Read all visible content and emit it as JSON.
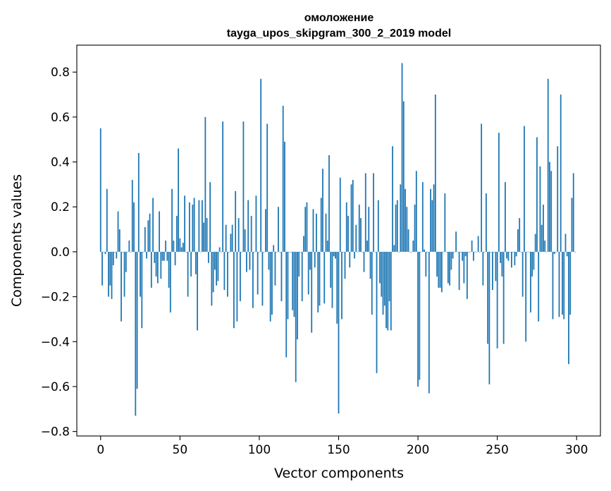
{
  "chart_data": {
    "type": "bar",
    "title": "омоложение",
    "subtitle": "tayga_upos_skipgram_300_2_2019 model",
    "xlabel": "Vector components",
    "ylabel": "Components values",
    "xlim": [
      -15,
      315
    ],
    "ylim": [
      -0.82,
      0.92
    ],
    "xticks": [
      0,
      50,
      100,
      150,
      200,
      250,
      300
    ],
    "yticks": [
      -0.8,
      -0.6,
      -0.4,
      -0.2,
      0.0,
      0.2,
      0.4,
      0.6,
      0.8
    ],
    "grid": false,
    "color": "#1f77b4",
    "values": [
      0.55,
      -0.15,
      0.0,
      -0.01,
      0.28,
      -0.2,
      -0.15,
      -0.21,
      -0.06,
      0.0,
      -0.03,
      0.18,
      0.1,
      -0.31,
      0.0,
      -0.2,
      -0.09,
      0.0,
      0.05,
      0.0,
      0.32,
      0.22,
      -0.73,
      -0.61,
      0.44,
      -0.2,
      -0.34,
      0.0,
      0.11,
      -0.03,
      0.14,
      0.17,
      -0.16,
      0.24,
      -0.05,
      -0.11,
      -0.14,
      0.18,
      -0.12,
      -0.04,
      -0.04,
      0.05,
      -0.04,
      -0.16,
      -0.27,
      0.28,
      0.05,
      -0.06,
      0.16,
      0.46,
      0.06,
      0.02,
      0.04,
      0.25,
      0.0,
      -0.2,
      0.22,
      -0.11,
      0.21,
      0.24,
      -0.1,
      -0.35,
      0.23,
      0.0,
      0.23,
      0.13,
      0.6,
      0.15,
      -0.05,
      0.31,
      -0.24,
      -0.18,
      -0.08,
      -0.15,
      -0.13,
      0.02,
      0.0,
      0.58,
      -0.17,
      0.12,
      -0.2,
      0.0,
      0.08,
      0.12,
      -0.34,
      0.27,
      -0.31,
      0.15,
      -0.22,
      0.0,
      0.58,
      0.1,
      -0.09,
      0.23,
      -0.08,
      0.16,
      -0.25,
      0.0,
      0.25,
      -0.19,
      0.0,
      0.77,
      -0.24,
      0.0,
      0.19,
      0.57,
      -0.08,
      -0.31,
      -0.28,
      0.03,
      -0.15,
      0.0,
      0.2,
      0.0,
      -0.22,
      0.65,
      0.49,
      -0.47,
      -0.3,
      0.0,
      0.0,
      -0.26,
      -0.29,
      -0.58,
      -0.39,
      -0.11,
      0.0,
      -0.22,
      0.07,
      0.2,
      0.22,
      -0.19,
      -0.08,
      -0.36,
      0.19,
      -0.07,
      0.17,
      -0.27,
      -0.24,
      0.24,
      0.37,
      -0.23,
      0.17,
      0.05,
      0.43,
      -0.16,
      -0.25,
      -0.02,
      -0.03,
      -0.32,
      -0.72,
      0.33,
      -0.3,
      0.0,
      -0.12,
      0.22,
      0.16,
      -0.07,
      0.3,
      0.32,
      -0.03,
      0.12,
      0.0,
      0.21,
      0.15,
      0.0,
      -0.09,
      0.35,
      0.05,
      0.2,
      -0.12,
      -0.28,
      0.35,
      0.0,
      -0.54,
      0.23,
      -0.14,
      -0.2,
      -0.28,
      -0.24,
      -0.34,
      -0.35,
      -0.22,
      -0.35,
      0.47,
      0.03,
      0.21,
      0.23,
      0.0,
      0.3,
      0.84,
      0.67,
      0.28,
      0.2,
      0.1,
      0.0,
      0.0,
      0.05,
      0.21,
      0.36,
      -0.6,
      -0.57,
      0.0,
      0.31,
      0.01,
      -0.11,
      0.0,
      -0.63,
      0.28,
      0.23,
      0.3,
      0.7,
      -0.11,
      -0.16,
      -0.16,
      -0.18,
      0.0,
      0.26,
      0.0,
      -0.14,
      -0.15,
      -0.08,
      -0.03,
      0.0,
      0.09,
      0.0,
      -0.17,
      0.0,
      -0.04,
      -0.14,
      -0.02,
      -0.21,
      0.0,
      0.0,
      0.05,
      -0.04,
      0.0,
      0.0,
      0.07,
      0.0,
      0.57,
      -0.15,
      0.0,
      0.26,
      -0.41,
      -0.59,
      0.0,
      -0.17,
      0.0,
      -0.13,
      -0.43,
      0.53,
      -0.05,
      -0.11,
      -0.41,
      0.31,
      -0.03,
      -0.04,
      0.0,
      -0.07,
      0.0,
      -0.06,
      -0.02,
      0.1,
      0.15,
      0.0,
      -0.2,
      0.56,
      -0.4,
      0.0,
      0.0,
      -0.27,
      -0.11,
      -0.08,
      0.08,
      0.51,
      -0.31,
      0.38,
      0.12,
      0.21,
      0.05,
      0.0,
      0.77,
      0.4,
      0.36,
      -0.3,
      -0.01,
      0.0,
      0.47,
      -0.29,
      0.7,
      -0.28,
      -0.3,
      0.08,
      -0.02,
      -0.5,
      -0.28,
      0.24,
      0.35,
      0.0
    ]
  }
}
